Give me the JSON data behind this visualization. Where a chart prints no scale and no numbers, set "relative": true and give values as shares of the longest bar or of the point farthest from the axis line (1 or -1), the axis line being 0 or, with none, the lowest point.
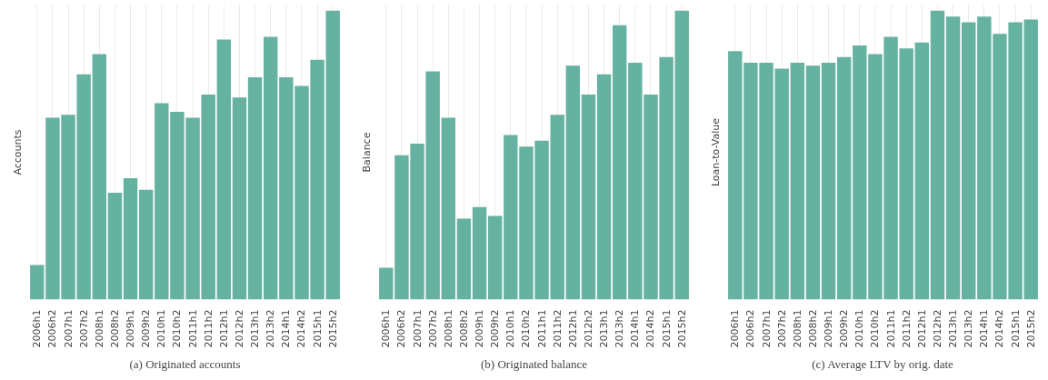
{
  "chart_data": [
    {
      "type": "bar",
      "title": "(a) Originated accounts",
      "ylabel": "Accounts",
      "relative": true,
      "grid": true,
      "color": "#66b2a0",
      "categories": [
        "2006h1",
        "2006h2",
        "2007h1",
        "2007h2",
        "2008h1",
        "2008h2",
        "2009h1",
        "2009h2",
        "2010h1",
        "2010h2",
        "2011h1",
        "2011h2",
        "2012h1",
        "2012h2",
        "2013h1",
        "2013h2",
        "2014h1",
        "2014h2",
        "2015h1",
        "2015h2"
      ],
      "values": [
        0.12,
        0.63,
        0.64,
        0.78,
        0.85,
        0.37,
        0.42,
        0.38,
        0.68,
        0.65,
        0.63,
        0.71,
        0.9,
        0.7,
        0.77,
        0.91,
        0.77,
        0.74,
        0.83,
        1
      ]
    },
    {
      "type": "bar",
      "title": "(b) Originated balance",
      "ylabel": "Balance",
      "relative": true,
      "grid": true,
      "color": "#66b2a0",
      "categories": [
        "2006h1",
        "2006h2",
        "2007h1",
        "2007h2",
        "2008h1",
        "2008h2",
        "2009h1",
        "2009h2",
        "2010h1",
        "2010h2",
        "2011h1",
        "2011h2",
        "2012h1",
        "2012h2",
        "2013h1",
        "2013h2",
        "2014h1",
        "2014h2",
        "2015h1",
        "2015h2"
      ],
      "values": [
        0.11,
        0.5,
        0.54,
        0.79,
        0.63,
        0.28,
        0.32,
        0.29,
        0.57,
        0.53,
        0.55,
        0.64,
        0.81,
        0.71,
        0.78,
        0.95,
        0.82,
        0.71,
        0.84,
        1
      ]
    },
    {
      "type": "bar",
      "title": "(c) Average LTV by orig. date",
      "ylabel": "Loan-to-Value",
      "relative": true,
      "grid": true,
      "color": "#66b2a0",
      "categories": [
        "2006h1",
        "2006h2",
        "2007h1",
        "2007h2",
        "2008h1",
        "2008h2",
        "2009h1",
        "2009h2",
        "2010h1",
        "2010h2",
        "2011h1",
        "2011h2",
        "2012h1",
        "2012h2",
        "2013h1",
        "2013h2",
        "2014h1",
        "2014h2",
        "2015h1",
        "2015h2"
      ],
      "values": [
        0.86,
        0.82,
        0.82,
        0.8,
        0.82,
        0.81,
        0.82,
        0.84,
        0.88,
        0.85,
        0.91,
        0.87,
        0.89,
        1,
        0.98,
        0.96,
        0.98,
        0.92,
        0.96,
        0.97
      ]
    }
  ]
}
